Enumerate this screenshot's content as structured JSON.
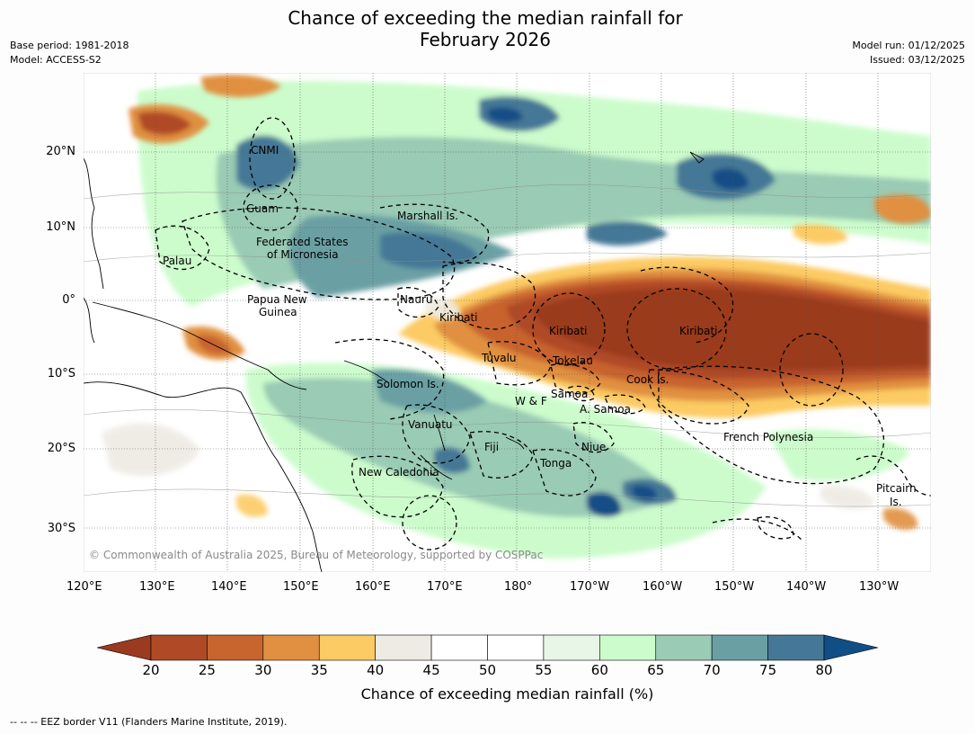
{
  "title": {
    "line1": "Chance of exceeding the median rainfall for",
    "line2": "February 2026"
  },
  "meta_left": {
    "base_period": "Base period: 1981-2018",
    "model": "Model: ACCESS-S2"
  },
  "meta_right": {
    "model_run": "Model run: 01/12/2025",
    "issued": "Issued: 03/12/2025"
  },
  "axes": {
    "lon_labels": [
      "120°E",
      "130°E",
      "140°E",
      "150°E",
      "160°E",
      "170°E",
      "180°",
      "170°W",
      "160°W",
      "150°W",
      "140°W",
      "130°W"
    ],
    "lat_labels": [
      "20°N",
      "10°N",
      "0°",
      "10°S",
      "20°S",
      "30°S"
    ]
  },
  "map_labels": {
    "cnmi": "CNMI",
    "guam": "Guam",
    "marshall": "Marshall Is.",
    "fsm1": "Federated States",
    "fsm2": "of Micronesia",
    "palau": "Palau",
    "nauru": "Nauru",
    "png1": "Papua New",
    "png2": "Guinea",
    "kiribati_w": "Kiribati",
    "kiribati_c": "Kiribati",
    "kiribati_e": "Kiribati",
    "tuvalu": "Tuvalu",
    "tokelau": "Tokelau",
    "cook": "Cook Is.",
    "solomon": "Solomon Is.",
    "samoa": "Samoa",
    "wf": "W & F",
    "asamoa": "A. Samoa",
    "vanuatu": "Vanuatu",
    "fiji": "Fiji",
    "niue": "Niue",
    "tonga": "Tonga",
    "french_polynesia": "French Polynesia",
    "new_caledonia": "New Caledonia",
    "pitcairn1": "Pitcairn",
    "pitcairn2": "Is."
  },
  "copyright": "© Commonwealth of Australia 2025, Bureau of Meteorology, supported by COSPPac",
  "colorbar": {
    "title": "Chance of exceeding median rainfall (%)",
    "ticks": [
      "20",
      "25",
      "30",
      "35",
      "40",
      "45",
      "50",
      "55",
      "60",
      "65",
      "70",
      "75",
      "80"
    ],
    "colors": {
      "below_20": "#9a3a1f",
      "20_25": "#b04a26",
      "25_30": "#c8642e",
      "30_35": "#e09040",
      "35_40": "#fccb64",
      "40_45": "#eeebe4",
      "45_50": "#ffffff",
      "50_55": "#ffffff",
      "55_60": "#e8f6e8",
      "60_65": "#ccfccc",
      "65_70": "#9acbb4",
      "70_75": "#6aa0a4",
      "75_80": "#447896",
      "above_80": "#124e86"
    }
  },
  "footnote": "--  --  -- EEZ border V11 (Flanders Marine Institute, 2019)."
}
